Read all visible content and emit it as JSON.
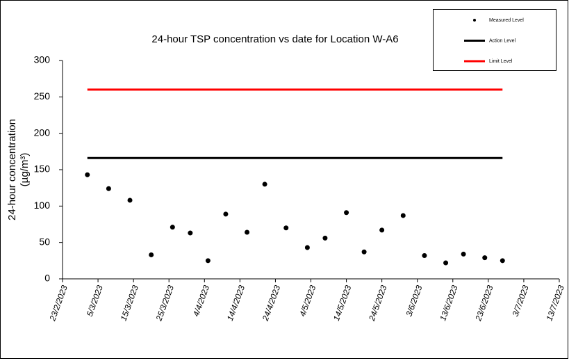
{
  "chart_data": {
    "type": "scatter",
    "title": "24-hour TSP concentration vs date for Location W-A6",
    "y_label": [
      "24-hour concentration",
      "(µg/m³)"
    ],
    "xlim": [
      "2023-02-23",
      "2023-07-13"
    ],
    "xticks": [
      {
        "value": "2023-02-23",
        "label": "23/2/2023"
      },
      {
        "value": "2023-03-05",
        "label": "5/3/2023"
      },
      {
        "value": "2023-03-15",
        "label": "15/3/2023"
      },
      {
        "value": "2023-03-25",
        "label": "25/3/2023"
      },
      {
        "value": "2023-04-04",
        "label": "4/4/2023"
      },
      {
        "value": "2023-04-14",
        "label": "14/4/2023"
      },
      {
        "value": "2023-04-24",
        "label": "24/4/2023"
      },
      {
        "value": "2023-05-04",
        "label": "4/5/2023"
      },
      {
        "value": "2023-05-14",
        "label": "14/5/2023"
      },
      {
        "value": "2023-05-24",
        "label": "24/5/2023"
      },
      {
        "value": "2023-06-03",
        "label": "3/6/2023"
      },
      {
        "value": "2023-06-13",
        "label": "13/6/2023"
      },
      {
        "value": "2023-06-23",
        "label": "23/6/2023"
      },
      {
        "value": "2023-07-03",
        "label": "3/7/2023"
      },
      {
        "value": "2023-07-13",
        "label": "13/7/2023"
      }
    ],
    "ylim": [
      0,
      300
    ],
    "yticks": [
      0,
      50,
      100,
      150,
      200,
      250,
      300
    ],
    "legend": "top-right",
    "series": [
      {
        "name": "Measured Level",
        "color": "#000000",
        "mode": "markers",
        "x": [
          "2023-03-02",
          "2023-03-08",
          "2023-03-14",
          "2023-03-20",
          "2023-03-26",
          "2023-03-31",
          "2023-04-05",
          "2023-04-10",
          "2023-04-16",
          "2023-04-21",
          "2023-04-27",
          "2023-05-03",
          "2023-05-08",
          "2023-05-14",
          "2023-05-19",
          "2023-05-24",
          "2023-05-30",
          "2023-06-05",
          "2023-06-11",
          "2023-06-16",
          "2023-06-22",
          "2023-06-27"
        ],
        "values": [
          143,
          124,
          108,
          33,
          71,
          63,
          25,
          89,
          64,
          130,
          70,
          43,
          56,
          91,
          37,
          67,
          87,
          32,
          22,
          34,
          29,
          25
        ]
      },
      {
        "name": "Action Level",
        "color": "#000000",
        "mode": "line",
        "x": [
          "2023-03-02",
          "2023-06-27"
        ],
        "values": [
          166,
          166
        ]
      },
      {
        "name": "Limit Level",
        "color": "#ff0000",
        "mode": "line",
        "x": [
          "2023-03-02",
          "2023-06-27"
        ],
        "values": [
          260,
          260
        ]
      }
    ]
  }
}
